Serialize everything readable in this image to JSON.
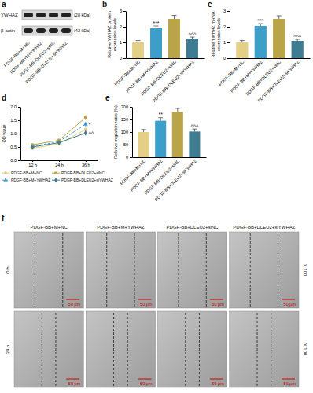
{
  "panel_labels": [
    "a",
    "b",
    "c",
    "d",
    "e",
    "f"
  ],
  "blot": {
    "bands": [
      {
        "protein": "YWHAZ",
        "size": "(28 kDa)"
      },
      {
        "protein": "β-actin",
        "size": "(42 kDa)"
      }
    ],
    "lanes": [
      "PDGF-BB+M+NC",
      "PDGF-BB+M+YWHAZ",
      "PDGF-BB+DLEU2+siNC",
      "PDGF-BB+DLEU2+siYWHAZ"
    ]
  },
  "chart_data": [
    {
      "type": "bar",
      "y_label": [
        "Relative YWHAZ protein",
        "expression levels"
      ],
      "categories": [
        "PDGF-BB+M+NC",
        "PDGF-BB+M+YWHAZ",
        "PDGF-BB+DLEU2+siNC",
        "PDGF-BB+DLEU2+siYWHAZ"
      ],
      "values": [
        1.0,
        1.9,
        2.5,
        1.25
      ],
      "errors": [
        0.12,
        0.15,
        0.22,
        0.1
      ],
      "significance": [
        null,
        "***",
        null,
        "^^^"
      ],
      "colors": [
        "#e3cf86",
        "#3b9fc9",
        "#b9a447",
        "#3e7c91"
      ],
      "ylim": [
        0,
        3
      ],
      "yticks": [
        0,
        1,
        2,
        3
      ]
    },
    {
      "type": "bar",
      "y_label": [
        "Relative YWHAZ mRNA",
        "expression levels"
      ],
      "categories": [
        "PDGF-BB+M+NC",
        "PDGF-BB+M+YWHAZ",
        "PDGF-BB+DLEU2+siNC",
        "PDGF-BB+DLEU2+siYWHAZ"
      ],
      "values": [
        1.0,
        2.05,
        2.5,
        1.1
      ],
      "errors": [
        0.12,
        0.15,
        0.2,
        0.1
      ],
      "significance": [
        null,
        "***",
        null,
        "^^^"
      ],
      "colors": [
        "#e3cf86",
        "#3b9fc9",
        "#b9a447",
        "#3e7c91"
      ],
      "ylim": [
        0,
        3
      ],
      "yticks": [
        0,
        1,
        2,
        3
      ]
    },
    {
      "type": "line",
      "y_label": [
        "OD value"
      ],
      "categories": [
        "12 h",
        "24 h",
        "36 h"
      ],
      "legend": "bottom",
      "series": [
        {
          "name": "PDGF-BB+M+NC",
          "color": "#e3cf86",
          "marker": "circle",
          "line_style": "solid",
          "values": [
            0.45,
            0.62,
            1.15
          ],
          "errors": [
            0.04,
            0.05,
            0.08
          ]
        },
        {
          "name": "PDGF-BB+M+YWHAZ",
          "color": "#3b9fc9",
          "marker": "triangle",
          "line_style": "dashed",
          "values": [
            0.52,
            0.7,
            1.35
          ],
          "errors": [
            0.04,
            0.05,
            0.09
          ],
          "significance": "*"
        },
        {
          "name": "PDGF-BB+DLEU2+siNC",
          "color": "#b9a447",
          "marker": "square",
          "line_style": "solid",
          "values": [
            0.58,
            0.75,
            1.6
          ],
          "errors": [
            0.05,
            0.05,
            0.1
          ]
        },
        {
          "name": "PDGF-BB+DLEU2+siYWHAZ",
          "color": "#3e7c91",
          "marker": "diamond",
          "line_style": "solid",
          "values": [
            0.5,
            0.66,
            1.02
          ],
          "errors": [
            0.04,
            0.05,
            0.08
          ],
          "significance": "^^"
        }
      ],
      "ylim": [
        0,
        2
      ],
      "yticks": [
        {
          "value": 0,
          "label": "0.0"
        },
        0.5,
        {
          "value": 1,
          "label": "1.0"
        },
        1.5,
        {
          "value": 2,
          "label": "2.0"
        }
      ]
    },
    {
      "type": "bar",
      "y_label": [
        "Relative migration rates (%)"
      ],
      "categories": [
        "PDGF-BB+M+NC",
        "PDGF-BB+M+YWHAZ",
        "PDGF-BB+DLEU2+siNC",
        "PDGF-BB+DLEU2+siYWHAZ"
      ],
      "values": [
        100,
        145,
        180,
        102
      ],
      "errors": [
        10,
        12,
        14,
        10
      ],
      "significance": [
        null,
        "**",
        null,
        "^^^"
      ],
      "colors": [
        "#e3cf86",
        "#3b9fc9",
        "#b9a447",
        "#3e7c91"
      ],
      "ylim": [
        0,
        200
      ],
      "yticks": [
        0,
        50,
        100,
        150,
        200
      ]
    }
  ],
  "micrographs": {
    "columns": [
      "PDGF-BB+M+NC",
      "PDGF-BB+M+YWHAZ",
      "PDGF-BB+DLEU2+siNC",
      "PDGF-BB+DLEU2+siYWHAZ"
    ],
    "rows": [
      "0 h",
      "24 h"
    ],
    "magnification": "X 100",
    "scale_bar": "50 μm"
  }
}
